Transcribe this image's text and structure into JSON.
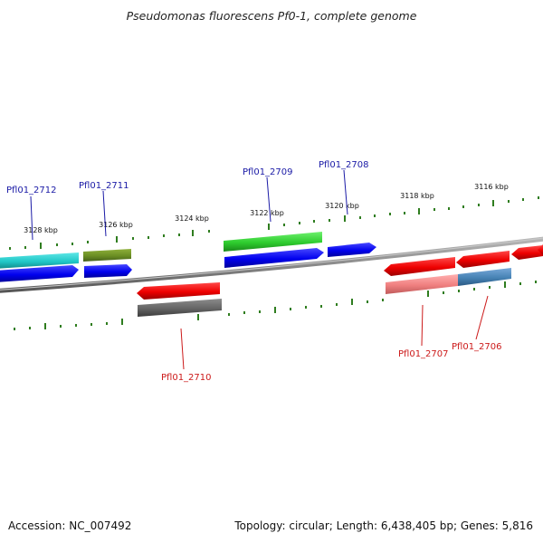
{
  "title": "Pseudomonas fluorescens Pf0-1, complete genome",
  "scale_labels": [
    "3128 kbp",
    "3126 kbp",
    "3124 kbp",
    "3122 kbp",
    "3120 kbp",
    "3118 kbp",
    "3116 kbp"
  ],
  "genes": {
    "top": [
      "Pfl01_2712",
      "Pfl01_2711",
      "Pfl01_2709",
      "Pfl01_2708"
    ],
    "bottom": [
      "Pfl01_2710",
      "Pfl01_2707",
      "Pfl01_2706"
    ]
  },
  "colors": {
    "backbone": "#8a8a8a",
    "tick": "#2f7d1f",
    "forward_cds": "#1111ee",
    "reverse_cds": "#ee1111",
    "cyan_feature": "#22cccc",
    "olive_feature": "#6b8e23",
    "green_feature": "#2ecc2e",
    "gray_feature": "#666666",
    "pink_feature": "#f08080",
    "steel_feature": "#4682b4",
    "label_top": "#1a1aa6",
    "label_bottom": "#cc1a1a"
  },
  "footer": {
    "accession": "Accession: NC_007492",
    "summary": "Topology: circular; Length: 6,438,405 bp; Genes: 5,816"
  }
}
